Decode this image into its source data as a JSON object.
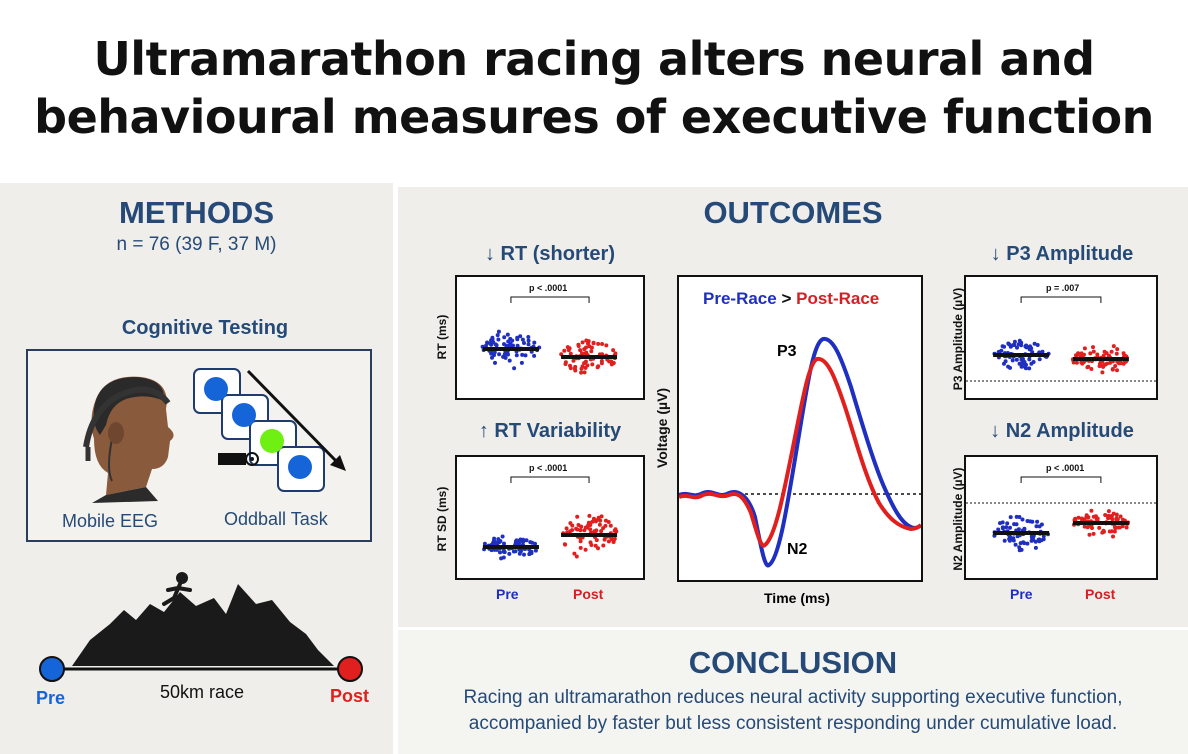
{
  "title_line1": "Ultramarathon racing alters neural and",
  "title_line2": "behavioural measures of executive function",
  "methods": {
    "heading": "METHODS",
    "n": "n = 76 (39 F, 37 M)",
    "cognitive_testing": "Cognitive Testing",
    "mobile_eeg": "Mobile EEG",
    "oddball_task": "Oddball Task",
    "race": {
      "pre": "Pre",
      "label": "50km race",
      "post": "Post"
    }
  },
  "outcomes": {
    "heading": "OUTCOMES",
    "rt": {
      "title": "↓ RT (shorter)",
      "ylabel": "RT (ms)",
      "p": "p < .0001"
    },
    "rtvar": {
      "title": "↑ RT Variability",
      "ylabel": "RT SD (ms)",
      "p": "p < .0001"
    },
    "p3": {
      "title": "↓ P3 Amplitude",
      "ylabel": "P3 Amplitude (µV)",
      "p": "p = .007"
    },
    "n2": {
      "title": "↓ N2 Amplitude",
      "ylabel": "N2 Amplitude (µV)",
      "p": "p < .0001"
    },
    "x_pre": "Pre",
    "x_post": "Post",
    "erp": {
      "legend_pre": "Pre-Race",
      "legend_gt": ">",
      "legend_post": "Post-Race",
      "ylabel": "Voltage (µV)",
      "xlabel": "Time (ms)",
      "p3_label": "P3",
      "n2_label": "N2"
    }
  },
  "conclusion": {
    "heading": "CONCLUSION",
    "line1": "Racing an ultramarathon reduces neural activity supporting executive function,",
    "line2": "accompanied by faster but less consistent responding under cumulative load."
  },
  "colors": {
    "pre": "#1f2fbf",
    "post": "#e0201f",
    "heading": "#264a77"
  },
  "chart_data": [
    {
      "type": "scatter",
      "title": "↓ RT (shorter)",
      "ylabel": "RT (ms)",
      "categories": [
        "Pre",
        "Post"
      ],
      "annotation": "p < .0001"
    },
    {
      "type": "scatter",
      "title": "↑ RT Variability",
      "ylabel": "RT SD (ms)",
      "categories": [
        "Pre",
        "Post"
      ],
      "annotation": "p < .0001"
    },
    {
      "type": "line",
      "ylabel": "Voltage (µV)",
      "xlabel": "Time (ms)",
      "series": [
        {
          "name": "Pre-Race"
        },
        {
          "name": "Post-Race"
        }
      ],
      "annotations": [
        "P3",
        "N2"
      ]
    },
    {
      "type": "scatter",
      "title": "↓ P3 Amplitude",
      "ylabel": "P3 Amplitude (µV)",
      "categories": [
        "Pre",
        "Post"
      ],
      "annotation": "p = .007"
    },
    {
      "type": "scatter",
      "title": "↓ N2 Amplitude",
      "ylabel": "N2 Amplitude (µV)",
      "categories": [
        "Pre",
        "Post"
      ],
      "annotation": "p < .0001"
    }
  ]
}
